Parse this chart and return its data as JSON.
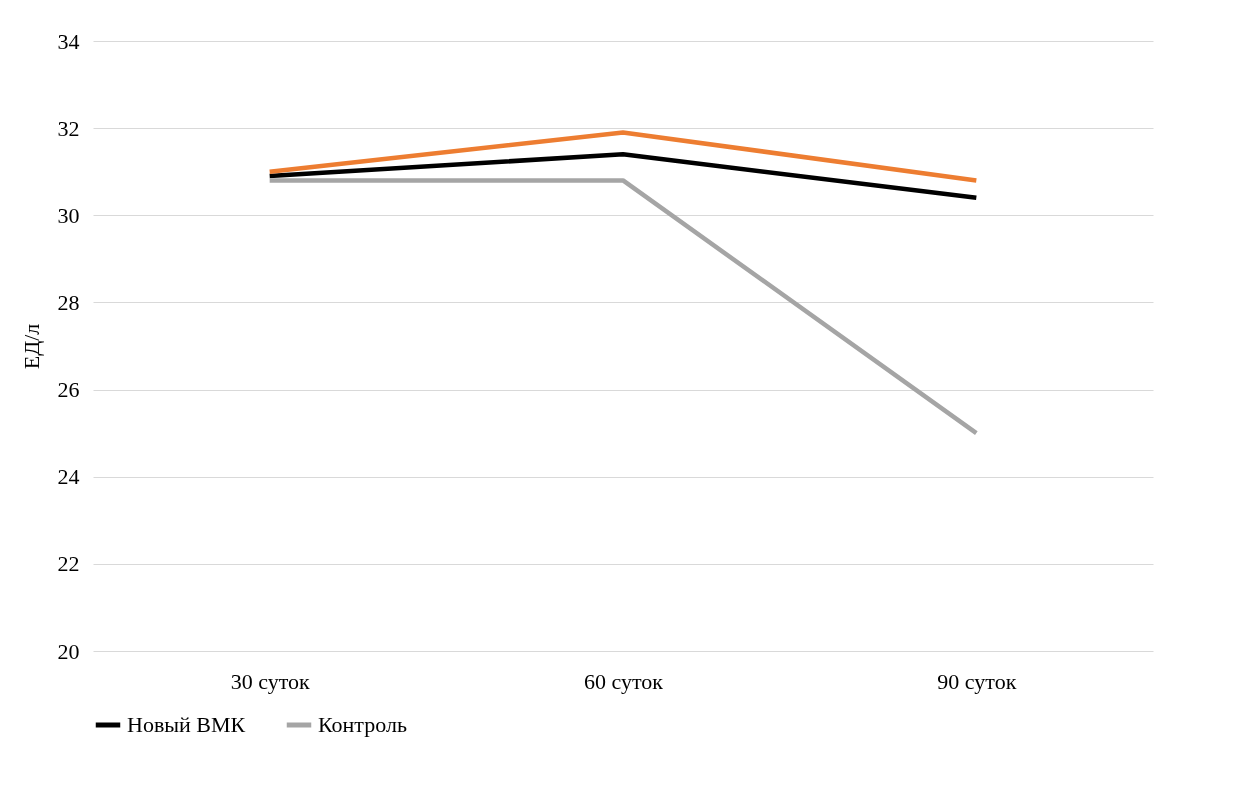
{
  "chart_data": {
    "type": "line",
    "ylabel": "ЕД/л",
    "categories": [
      "30 суток",
      "60 суток",
      "90 суток"
    ],
    "series": [
      {
        "name": "Новый ВМК",
        "color": "#000000",
        "values": [
          30.9,
          31.4,
          30.4
        ]
      },
      {
        "color": "#ed7d31",
        "values": [
          31.0,
          31.9,
          30.8
        ]
      },
      {
        "name": "Контроль",
        "color": "#a5a5a5",
        "values": [
          30.8,
          30.8,
          25.0
        ]
      }
    ],
    "ylim": [
      20,
      34
    ],
    "yticks": [
      20,
      22,
      24,
      26,
      28,
      30,
      32,
      34
    ],
    "grid": "y",
    "legend": "bottom",
    "marker": "none",
    "line_style": "solid"
  }
}
